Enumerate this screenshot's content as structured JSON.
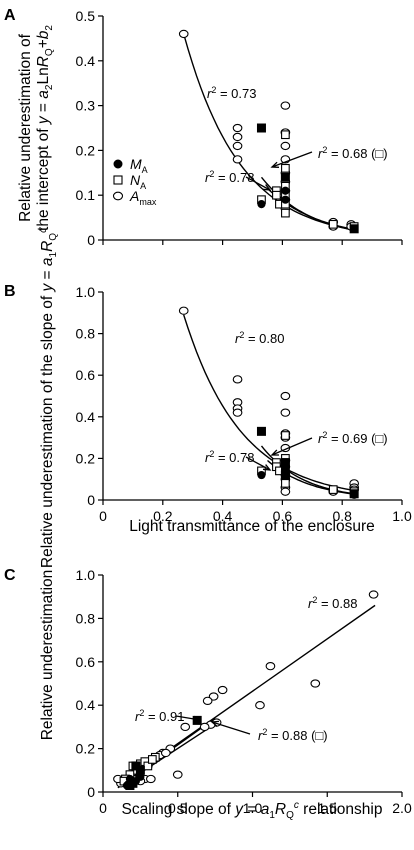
{
  "chart_data": [
    {
      "panel": "A",
      "type": "scatter",
      "ylabel": "Relative underestimation of\nthe intercept of y = a2LnRQ+b2",
      "ylabel_lines": [
        "Relative underestimation of",
        "the intercept of y = a₂LnRₒ+b₂"
      ],
      "xlabel": "",
      "xlim": [
        0,
        1.0
      ],
      "ylim": [
        0,
        0.5
      ],
      "yticks": [
        "0",
        "0.1",
        "0.2",
        "0.3",
        "0.4",
        "0.5"
      ],
      "yticks_values": [
        0,
        0.1,
        0.2,
        0.3,
        0.4,
        0.5
      ],
      "legend": [
        {
          "marker": "filled-circle",
          "label_main": "M",
          "label_sub": "A"
        },
        {
          "marker": "open-square",
          "label_main": "N",
          "label_sub": "A"
        },
        {
          "marker": "open-circle",
          "label_main": "A",
          "label_sub": "max"
        }
      ],
      "annotations": [
        "r² = 0.73",
        "r² = 0.68 (□)",
        "r² = 0.78"
      ],
      "series": [
        {
          "name": "Amax",
          "marker": "open-circle",
          "points": [
            [
              0.27,
              0.46
            ],
            [
              0.45,
              0.25
            ],
            [
              0.45,
              0.23
            ],
            [
              0.45,
              0.21
            ],
            [
              0.45,
              0.18
            ],
            [
              0.61,
              0.3
            ],
            [
              0.61,
              0.24
            ],
            [
              0.61,
              0.21
            ],
            [
              0.61,
              0.18
            ],
            [
              0.61,
              0.15
            ],
            [
              0.61,
              0.13
            ],
            [
              0.61,
              0.11
            ],
            [
              0.61,
              0.09
            ],
            [
              0.61,
              0.07
            ],
            [
              0.77,
              0.04
            ],
            [
              0.77,
              0.03
            ],
            [
              0.83,
              0.035
            ],
            [
              0.83,
              0.03
            ]
          ]
        },
        {
          "name": "NA",
          "marker": "open-square",
          "points": [
            [
              0.53,
              0.09
            ],
            [
              0.58,
              0.11
            ],
            [
              0.58,
              0.1
            ],
            [
              0.59,
              0.08
            ],
            [
              0.61,
              0.235
            ],
            [
              0.61,
              0.16
            ],
            [
              0.61,
              0.12
            ],
            [
              0.61,
              0.1
            ],
            [
              0.61,
              0.08
            ],
            [
              0.61,
              0.06
            ],
            [
              0.77,
              0.035
            ],
            [
              0.84,
              0.03
            ]
          ]
        },
        {
          "name": "MA",
          "marker": "filled-circle",
          "points": [
            [
              0.53,
              0.08
            ],
            [
              0.61,
              0.11
            ],
            [
              0.61,
              0.09
            ],
            [
              0.84,
              0.025
            ]
          ]
        },
        {
          "name": "solid-square",
          "marker": "filled-square",
          "points": [
            [
              0.53,
              0.25
            ],
            [
              0.61,
              0.14
            ],
            [
              0.84,
              0.025
            ]
          ]
        }
      ],
      "fits": [
        {
          "label": "r² = 0.73",
          "a": 0.46,
          "b": 0.27,
          "k": 5.3,
          "xrange": [
            0.27,
            0.84
          ]
        },
        {
          "label": "r² = 0.68",
          "a": 0.14,
          "b": 0.53,
          "k": 6.0,
          "xrange": [
            0.53,
            0.84
          ]
        },
        {
          "label": "r² = 0.78",
          "a": 0.115,
          "b": 0.55,
          "k": 5.5,
          "xrange": [
            0.55,
            0.84
          ]
        }
      ]
    },
    {
      "panel": "B",
      "type": "scatter",
      "ylabel_lines": [
        "Relative underestimation of the slope of y = a₁Rₒᶜ"
      ],
      "xlabel": "Light transmittance of the enclosure",
      "xlim": [
        0,
        1.0
      ],
      "ylim": [
        0,
        1.0
      ],
      "xticks": [
        "0",
        "0.2",
        "0.4",
        "0.6",
        "0.8",
        "1.0"
      ],
      "xticks_values": [
        0,
        0.2,
        0.4,
        0.6,
        0.8,
        1.0
      ],
      "yticks": [
        "0",
        "0.2",
        "0.4",
        "0.6",
        "0.8",
        "1.0"
      ],
      "yticks_values": [
        0,
        0.2,
        0.4,
        0.6,
        0.8,
        1.0
      ],
      "annotations": [
        "r² = 0.80",
        "r² = 0.69 (□)",
        "r² = 0.78"
      ],
      "series": [
        {
          "name": "Amax",
          "marker": "open-circle",
          "points": [
            [
              0.27,
              0.91
            ],
            [
              0.45,
              0.58
            ],
            [
              0.45,
              0.47
            ],
            [
              0.45,
              0.44
            ],
            [
              0.45,
              0.42
            ],
            [
              0.61,
              0.5
            ],
            [
              0.61,
              0.42
            ],
            [
              0.61,
              0.32
            ],
            [
              0.61,
              0.3
            ],
            [
              0.61,
              0.25
            ],
            [
              0.61,
              0.19
            ],
            [
              0.61,
              0.16
            ],
            [
              0.61,
              0.12
            ],
            [
              0.61,
              0.1
            ],
            [
              0.61,
              0.06
            ],
            [
              0.61,
              0.04
            ],
            [
              0.77,
              0.05
            ],
            [
              0.77,
              0.04
            ],
            [
              0.84,
              0.08
            ],
            [
              0.84,
              0.06
            ],
            [
              0.84,
              0.05
            ]
          ]
        },
        {
          "name": "NA",
          "marker": "open-square",
          "points": [
            [
              0.53,
              0.14
            ],
            [
              0.58,
              0.18
            ],
            [
              0.58,
              0.16
            ],
            [
              0.59,
              0.14
            ],
            [
              0.61,
              0.31
            ],
            [
              0.61,
              0.2
            ],
            [
              0.61,
              0.16
            ],
            [
              0.61,
              0.13
            ],
            [
              0.61,
              0.11
            ],
            [
              0.61,
              0.08
            ],
            [
              0.77,
              0.05
            ],
            [
              0.84,
              0.04
            ]
          ]
        },
        {
          "name": "MA",
          "marker": "filled-circle",
          "points": [
            [
              0.53,
              0.12
            ],
            [
              0.61,
              0.15
            ],
            [
              0.61,
              0.13
            ],
            [
              0.84,
              0.025
            ]
          ]
        },
        {
          "name": "solid-square",
          "marker": "filled-square",
          "points": [
            [
              0.53,
              0.33
            ],
            [
              0.61,
              0.18
            ],
            [
              0.61,
              0.12
            ],
            [
              0.84,
              0.03
            ]
          ]
        }
      ],
      "fits": [
        {
          "label": "r² = 0.80",
          "a": 0.89,
          "b": 0.27,
          "k": 5.2,
          "xrange": [
            0.27,
            0.84
          ]
        },
        {
          "label": "r² = 0.69",
          "a": 0.26,
          "b": 0.53,
          "k": 7.0,
          "xrange": [
            0.53,
            0.84
          ]
        },
        {
          "label": "r² = 0.78",
          "a": 0.19,
          "b": 0.55,
          "k": 6.6,
          "xrange": [
            0.55,
            0.84
          ]
        }
      ]
    },
    {
      "panel": "C",
      "type": "scatter",
      "ylabel_lines": [
        "Relative underestimation"
      ],
      "xlabel": "Scaling slope of y = a₁Rₒᶜ relationship",
      "xlim": [
        0,
        2.0
      ],
      "ylim": [
        0,
        1.0
      ],
      "xticks": [
        "0",
        "0.5",
        "1.0",
        "1.5",
        "2.0"
      ],
      "xticks_values": [
        0,
        0.5,
        1.0,
        1.5,
        2.0
      ],
      "yticks": [
        "0",
        "0.2",
        "0.4",
        "0.6",
        "0.8",
        "1.0"
      ],
      "yticks_values": [
        0,
        0.2,
        0.4,
        0.6,
        0.8,
        1.0
      ],
      "annotations": [
        "r² = 0.88",
        "r² = 0.91",
        "r² = 0.88 (□)"
      ],
      "series": [
        {
          "name": "Amax",
          "marker": "open-circle",
          "points": [
            [
              1.81,
              0.91
            ],
            [
              1.12,
              0.58
            ],
            [
              1.42,
              0.5
            ],
            [
              1.05,
              0.4
            ],
            [
              0.8,
              0.47
            ],
            [
              0.74,
              0.44
            ],
            [
              0.7,
              0.42
            ],
            [
              0.76,
              0.32
            ],
            [
              0.72,
              0.31
            ],
            [
              0.68,
              0.3
            ],
            [
              0.55,
              0.3
            ],
            [
              0.5,
              0.08
            ],
            [
              0.45,
              0.2
            ],
            [
              0.4,
              0.18
            ],
            [
              0.35,
              0.16
            ],
            [
              0.3,
              0.12
            ],
            [
              0.28,
              0.06
            ],
            [
              0.25,
              0.05
            ],
            [
              0.2,
              0.06
            ],
            [
              0.15,
              0.05
            ],
            [
              0.12,
              0.04
            ],
            [
              0.1,
              0.06
            ],
            [
              0.32,
              0.06
            ],
            [
              0.38,
              0.17
            ],
            [
              0.42,
              0.18
            ]
          ]
        },
        {
          "name": "NA",
          "marker": "open-square",
          "points": [
            [
              0.2,
              0.12
            ],
            [
              0.22,
              0.1
            ],
            [
              0.25,
              0.13
            ],
            [
              0.28,
              0.14
            ],
            [
              0.35,
              0.16
            ],
            [
              0.18,
              0.08
            ],
            [
              0.15,
              0.06
            ],
            [
              0.14,
              0.05
            ],
            [
              0.3,
              0.12
            ],
            [
              0.33,
              0.15
            ]
          ]
        },
        {
          "name": "MA",
          "marker": "filled-circle",
          "points": [
            [
              0.18,
              0.06
            ],
            [
              0.2,
              0.04
            ],
            [
              0.22,
              0.05
            ],
            [
              0.16,
              0.03
            ],
            [
              0.25,
              0.07
            ]
          ]
        },
        {
          "name": "solid-square",
          "marker": "filled-square",
          "points": [
            [
              0.63,
              0.33
            ],
            [
              0.22,
              0.12
            ],
            [
              0.25,
              0.1
            ],
            [
              0.2,
              0.04
            ],
            [
              0.18,
              0.03
            ]
          ]
        }
      ],
      "fits": [
        {
          "label": "r² = 0.88",
          "kind": "linear",
          "x0": 0.1,
          "y0": 0.03,
          "x1": 1.82,
          "y1": 0.86
        },
        {
          "label": "r² = 0.91",
          "kind": "linear",
          "x0": 0.1,
          "y0": 0.02,
          "x1": 0.75,
          "y1": 0.34
        },
        {
          "label": "r² = 0.88",
          "kind": "linear",
          "x0": 0.1,
          "y0": 0.02,
          "x1": 0.72,
          "y1": 0.3
        }
      ]
    }
  ],
  "labels": {
    "panel_a": "A",
    "panel_b": "B",
    "panel_c": "C",
    "a_ylabel_line1": "Relative underestimation of",
    "a_ylabel_line2_pre": "the intercept of ",
    "b_ylabel_pre": "Relative underestimation of the slope of ",
    "c_ylabel": "Relative underestimation",
    "b_xlabel": "Light transmittance of the enclosure",
    "c_xlabel_pre": "Scaling slope of ",
    "c_xlabel_post": " relationship"
  }
}
